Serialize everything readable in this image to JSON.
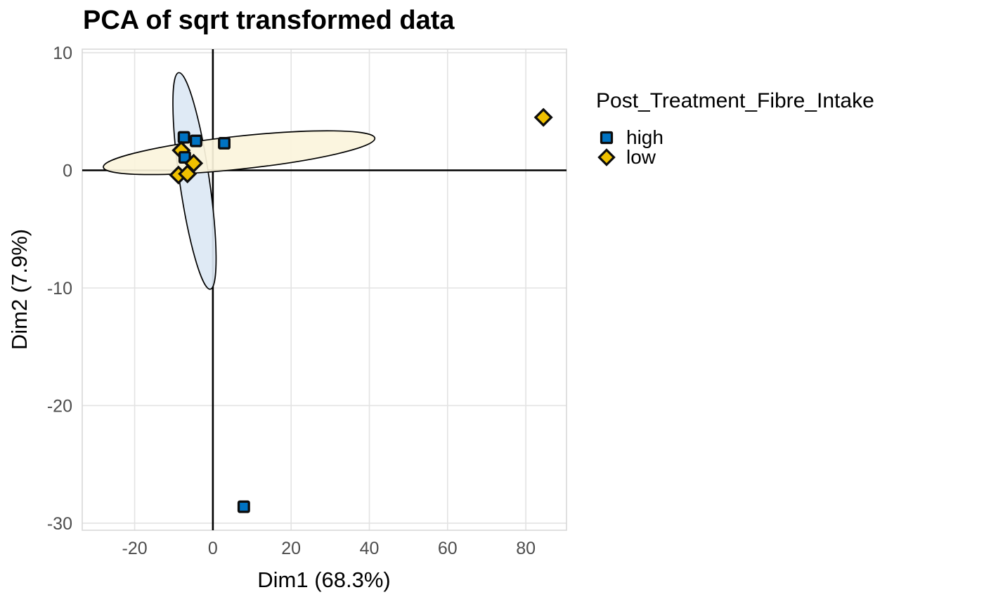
{
  "chart_data": {
    "type": "scatter",
    "title": "PCA of sqrt transformed data",
    "xlabel": "Dim1 (68.3%)",
    "ylabel": "Dim2 (7.9%)",
    "xlim": [
      -33.4,
      90.4
    ],
    "ylim": [
      -30.6,
      10.3
    ],
    "xticks": [
      -20,
      0,
      20,
      40,
      60,
      80
    ],
    "yticks": [
      10,
      0,
      -10,
      -20,
      -30
    ],
    "grid": true,
    "axis_lines_through_origin": true,
    "legend": {
      "position": "right",
      "title": "Post_Treatment_Fibre_Intake",
      "items": [
        {
          "label": "high",
          "marker": "square",
          "fill": "#0073C2"
        },
        {
          "label": "low",
          "marker": "diamond",
          "fill": "#EFC000"
        }
      ]
    },
    "series": [
      {
        "name": "high",
        "marker": "square",
        "fill": "#0073C2",
        "stroke": "#0d0d0d",
        "points": [
          [
            -4.3,
            2.5
          ],
          [
            -7.4,
            2.8
          ],
          [
            -7.2,
            1.1
          ],
          [
            2.9,
            2.3
          ],
          [
            7.9,
            -28.6
          ]
        ],
        "ellipse": {
          "cx": -4.7,
          "cy": -0.9,
          "rx_x_units": 3.8,
          "ry_y_units": 9.3,
          "rotate_deg": -8.3,
          "fill": "#dce8f4"
        }
      },
      {
        "name": "low",
        "marker": "diamond",
        "fill": "#EFC000",
        "stroke": "#0d0d0d",
        "points": [
          [
            -8.1,
            1.7
          ],
          [
            -4.9,
            0.6
          ],
          [
            -8.8,
            -0.4
          ],
          [
            -6.5,
            -0.3
          ],
          [
            84.5,
            4.5
          ]
        ],
        "ellipse": {
          "cx": 6.7,
          "cy": 1.5,
          "rx_x_units": 34.9,
          "ry_y_units": 1.4,
          "rotate_deg": -6.1,
          "fill": "#fbf4dc"
        }
      }
    ],
    "draw_order": [
      {
        "s": "high",
        "x": -4.3,
        "y": 2.5
      },
      {
        "s": "high",
        "x": -7.4,
        "y": 2.8
      },
      {
        "s": "low",
        "x": -8.1,
        "y": 1.7
      },
      {
        "s": "high",
        "x": -7.2,
        "y": 1.1
      },
      {
        "s": "low",
        "x": -4.9,
        "y": 0.6
      },
      {
        "s": "low",
        "x": -8.8,
        "y": -0.4
      },
      {
        "s": "low",
        "x": -6.5,
        "y": -0.3
      },
      {
        "s": "high",
        "x": 2.9,
        "y": 2.3
      },
      {
        "s": "low",
        "x": 84.5,
        "y": 4.5
      },
      {
        "s": "high",
        "x": 7.9,
        "y": -28.6
      }
    ],
    "colors": {
      "background": "#ffffff",
      "grid": "#e3e3e3",
      "panel_border": "#d8d8d8",
      "axis_line": "#000000",
      "tick_text": "#4d4d4d",
      "ellipse_stroke": "#000000",
      "marker_stroke": "#0d0d0d"
    }
  }
}
